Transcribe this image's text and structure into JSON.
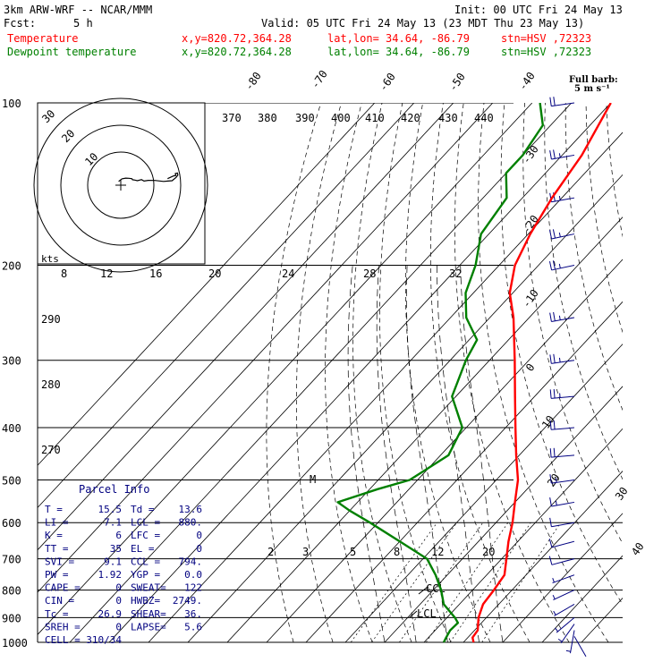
{
  "header": {
    "model": "3km ARW-WRF -- NCAR/MMM",
    "init": "Init: 00 UTC Fri 24 May 13",
    "fcst_label": "Fcst:",
    "fcst_value": "5 h",
    "valid": "Valid: 05 UTC Fri 24 May 13 (23 MDT Thu 23 May 13)",
    "lines": [
      {
        "name": "Temperature",
        "coords": "x,y=820.72,364.28",
        "latlon": "lat,lon= 34.64, -86.79",
        "stn": "stn=HSV ,72323",
        "color": "#ff0000"
      },
      {
        "name": "Dewpoint temperature",
        "coords": "x,y=820.72,364.28",
        "latlon": "lat,lon= 34.64, -86.79",
        "stn": "stn=HSV ,72323",
        "color": "#008000"
      }
    ]
  },
  "barb_legend": {
    "title": "Full barb:",
    "value": "5 m s⁻¹"
  },
  "hodograph": {
    "units": "kts",
    "ring_labels": [
      "30",
      "20",
      "10"
    ]
  },
  "parcel_info": {
    "title": "Parcel Info",
    "rows": [
      [
        "T  =",
        "15.5",
        "Td =",
        "13.6"
      ],
      [
        "LI =",
        "7.1",
        "LCL =",
        "880."
      ],
      [
        "K  =",
        "6",
        "LFC =",
        "0"
      ],
      [
        "TT =",
        "35",
        "EL  =",
        "0"
      ],
      [
        "SVI =",
        "9.1",
        "CCL =",
        "794."
      ],
      [
        "PW =",
        "1.92",
        "YGP =",
        "0.0"
      ],
      [
        "CAPE =",
        "0",
        "SWEAT=",
        "122"
      ],
      [
        "CIN =",
        "0",
        "HWBZ=",
        "2749."
      ],
      [
        "Tc =",
        "26.9",
        "SHEAR=",
        "36."
      ],
      [
        "SREH =",
        "0",
        "LAPSE=",
        "5.6"
      ],
      [
        "CELL =",
        "310/34",
        "",
        ""
      ]
    ]
  },
  "chart_data": {
    "type": "line",
    "title": "",
    "pressure_levels_hPa": [
      100,
      200,
      300,
      400,
      500,
      600,
      700,
      800,
      900,
      1000
    ],
    "theta_labels": [
      "370",
      "380",
      "390",
      "400",
      "410",
      "420",
      "430",
      "440"
    ],
    "theta_bottom_labels": [
      "290",
      "280",
      "270"
    ],
    "mixing_ratio_labels_upper": [
      "8",
      "12",
      "16",
      "20",
      "24",
      "28",
      "32"
    ],
    "mixing_ratio_labels_lower": [
      "2",
      "3",
      "5",
      "8",
      "12",
      "20"
    ],
    "isotherm_labels_top": [
      "-80",
      "-70",
      "-60",
      "-50",
      "-40"
    ],
    "isotherm_labels_right": [
      "-30",
      "-20",
      "-10",
      "0",
      "10",
      "20",
      "30",
      "40"
    ],
    "annotations": {
      "ccl": "CCL",
      "lcl": "LCL",
      "marker": "M"
    },
    "series": [
      {
        "name": "Temperature",
        "color": "#ff0000",
        "points": [
          [
            1000,
            22.6
          ],
          [
            980,
            21.2
          ],
          [
            950,
            20.8
          ],
          [
            900,
            18.0
          ],
          [
            850,
            16.0
          ],
          [
            800,
            15.4
          ],
          [
            750,
            14.5
          ],
          [
            700,
            11.2
          ],
          [
            650,
            7.6
          ],
          [
            600,
            4.2
          ],
          [
            550,
            0.0
          ],
          [
            500,
            -4.5
          ],
          [
            450,
            -10.8
          ],
          [
            400,
            -17.5
          ],
          [
            350,
            -25.0
          ],
          [
            300,
            -33.6
          ],
          [
            250,
            -44.0
          ],
          [
            225,
            -50.8
          ],
          [
            200,
            -56.0
          ],
          [
            175,
            -59.5
          ],
          [
            150,
            -62.5
          ],
          [
            125,
            -65.0
          ],
          [
            100,
            -70.0
          ]
        ]
      },
      {
        "name": "Dewpoint temperature",
        "color": "#008000",
        "points": [
          [
            1000,
            15.0
          ],
          [
            980,
            14.5
          ],
          [
            950,
            13.8
          ],
          [
            920,
            14.0
          ],
          [
            900,
            12.0
          ],
          [
            850,
            6.0
          ],
          [
            800,
            2.0
          ],
          [
            750,
            -3.0
          ],
          [
            700,
            -9.0
          ],
          [
            650,
            -20.0
          ],
          [
            600,
            -32.0
          ],
          [
            570,
            -40.0
          ],
          [
            550,
            -45.0
          ],
          [
            520,
            -38.0
          ],
          [
            500,
            -32.0
          ],
          [
            450,
            -28.0
          ],
          [
            400,
            -31.0
          ],
          [
            350,
            -41.0
          ],
          [
            300,
            -46.0
          ],
          [
            275,
            -48.0
          ],
          [
            250,
            -56.0
          ],
          [
            225,
            -62.0
          ],
          [
            200,
            -66.0
          ],
          [
            175,
            -72.0
          ],
          [
            150,
            -74.0
          ],
          [
            135,
            -80.0
          ],
          [
            125,
            -80.0
          ],
          [
            110,
            -82.0
          ],
          [
            100,
            -88.0
          ]
        ]
      }
    ],
    "wind_profile": [
      {
        "p": 975,
        "dir": 150,
        "spd": 2
      },
      {
        "p": 950,
        "dir": 190,
        "spd": 3
      },
      {
        "p": 925,
        "dir": 215,
        "spd": 4
      },
      {
        "p": 900,
        "dir": 230,
        "spd": 5
      },
      {
        "p": 850,
        "dir": 240,
        "spd": 6
      },
      {
        "p": 800,
        "dir": 245,
        "spd": 6
      },
      {
        "p": 750,
        "dir": 250,
        "spd": 7
      },
      {
        "p": 700,
        "dir": 255,
        "spd": 8
      },
      {
        "p": 650,
        "dir": 255,
        "spd": 10
      },
      {
        "p": 600,
        "dir": 260,
        "spd": 11
      },
      {
        "p": 550,
        "dir": 260,
        "spd": 13
      },
      {
        "p": 500,
        "dir": 262,
        "spd": 16
      },
      {
        "p": 450,
        "dir": 265,
        "spd": 20
      },
      {
        "p": 400,
        "dir": 265,
        "spd": 22
      },
      {
        "p": 350,
        "dir": 265,
        "spd": 24
      },
      {
        "p": 300,
        "dir": 262,
        "spd": 26
      },
      {
        "p": 250,
        "dir": 260,
        "spd": 27
      },
      {
        "p": 200,
        "dir": 258,
        "spd": 27
      },
      {
        "p": 175,
        "dir": 258,
        "spd": 26
      },
      {
        "p": 150,
        "dir": 260,
        "spd": 26
      },
      {
        "p": 125,
        "dir": 260,
        "spd": 25
      },
      {
        "p": 100,
        "dir": 262,
        "spd": 22
      }
    ]
  }
}
